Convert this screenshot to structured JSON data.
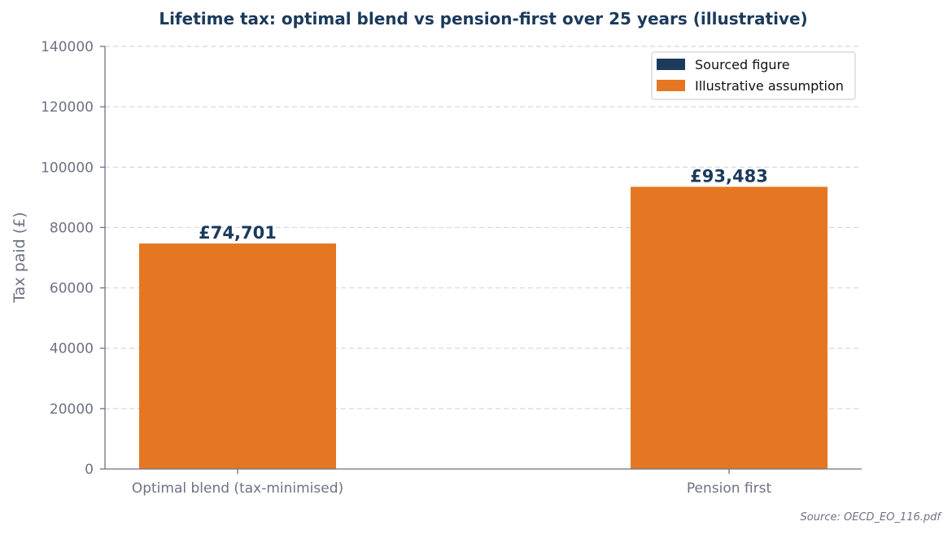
{
  "chart_data": {
    "type": "bar",
    "title": "Lifetime tax: optimal blend vs pension-first over 25 years (illustrative)",
    "xlabel": "",
    "ylabel": "Tax paid (£)",
    "categories": [
      "Optimal blend (tax-minimised)",
      "Pension first"
    ],
    "values": [
      74701,
      93483
    ],
    "value_labels": [
      "£74,701",
      "£93,483"
    ],
    "bar_kind": [
      "illustrative",
      "illustrative"
    ],
    "ylim": [
      0,
      140000
    ],
    "yticks": [
      0,
      20000,
      40000,
      60000,
      80000,
      100000,
      120000,
      140000
    ],
    "grid": true,
    "legend_position": "top-right",
    "legend": [
      {
        "key": "sourced",
        "label": "Sourced figure",
        "color": "#1b3a5c"
      },
      {
        "key": "illustrative",
        "label": "Illustrative assumption",
        "color": "#e67722"
      }
    ],
    "source_note": "Source: OECD_EO_116.pdf"
  }
}
